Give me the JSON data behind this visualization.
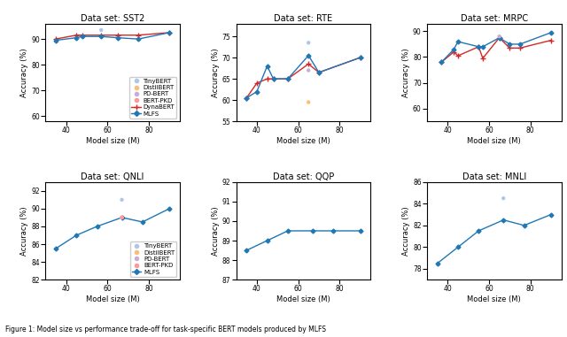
{
  "sst2": {
    "title": "Data set: SST2",
    "dynabert": {
      "x": [
        35,
        45,
        48,
        57,
        65,
        75,
        90
      ],
      "y": [
        90.0,
        91.5,
        91.5,
        91.5,
        91.5,
        91.5,
        92.5
      ]
    },
    "mlfs": {
      "x": [
        35,
        45,
        48,
        57,
        65,
        75,
        90
      ],
      "y": [
        89.5,
        90.5,
        91.0,
        91.0,
        90.5,
        90.0,
        92.5
      ]
    },
    "tinybert": {
      "x": [
        57
      ],
      "y": [
        93.5
      ]
    },
    "distilbert": {
      "x": [],
      "y": []
    },
    "pdbert": {
      "x": [],
      "y": []
    },
    "bertpkd": {
      "x": [],
      "y": []
    }
  },
  "rte": {
    "title": "Data set: RTE",
    "dynabert": {
      "x": [
        35,
        40,
        45,
        48,
        55,
        65,
        70,
        90
      ],
      "y": [
        60.5,
        64.0,
        65.0,
        65.0,
        65.0,
        68.5,
        66.5,
        70.0
      ]
    },
    "mlfs": {
      "x": [
        35,
        40,
        45,
        48,
        55,
        65,
        70,
        90
      ],
      "y": [
        60.5,
        62.0,
        68.0,
        65.0,
        65.0,
        70.5,
        66.5,
        70.0
      ]
    },
    "tinybert": {
      "x": [
        65
      ],
      "y": [
        73.5
      ]
    },
    "distilbert": {
      "x": [
        65
      ],
      "y": [
        59.5
      ]
    },
    "pdbert": {
      "x": [
        65
      ],
      "y": [
        67.0
      ]
    },
    "bertpkd": {
      "x": [],
      "y": []
    }
  },
  "mrpc": {
    "title": "Data set: MRPC",
    "dynabert": {
      "x": [
        37,
        43,
        45,
        55,
        57,
        65,
        70,
        75,
        90
      ],
      "y": [
        78.0,
        82.0,
        80.5,
        84.0,
        79.5,
        87.5,
        83.5,
        83.5,
        86.5
      ]
    },
    "mlfs": {
      "x": [
        37,
        43,
        45,
        55,
        57,
        65,
        70,
        75,
        90
      ],
      "y": [
        78.0,
        83.0,
        86.0,
        84.0,
        84.0,
        87.5,
        85.0,
        85.0,
        89.5
      ]
    },
    "tinybert": {
      "x": [],
      "y": []
    },
    "distilbert": {
      "x": [],
      "y": []
    },
    "pdbert": {
      "x": [
        65
      ],
      "y": [
        88.0
      ]
    },
    "bertpkd": {
      "x": [],
      "y": []
    }
  },
  "qnli": {
    "title": "Data set: QNLI",
    "dynabert": {
      "x": [],
      "y": []
    },
    "mlfs": {
      "x": [
        35,
        45,
        55,
        67,
        77,
        90
      ],
      "y": [
        85.5,
        87.0,
        88.0,
        89.0,
        88.5,
        90.0
      ]
    },
    "tinybert": {
      "x": [
        67
      ],
      "y": [
        91.0
      ]
    },
    "distilbert": {
      "x": [
        67
      ],
      "y": [
        89.0
      ]
    },
    "pdbert": {
      "x": [
        67
      ],
      "y": [
        89.0
      ]
    },
    "bertpkd": {
      "x": [
        67
      ],
      "y": [
        89.0
      ]
    }
  },
  "qqp": {
    "title": "Data set: QQP",
    "dynabert": {
      "x": [],
      "y": []
    },
    "mlfs": {
      "x": [
        35,
        45,
        55,
        67,
        77,
        90
      ],
      "y": [
        88.5,
        89.0,
        89.5,
        89.5,
        89.5,
        89.5
      ]
    },
    "tinybert": {
      "x": [],
      "y": []
    },
    "distilbert": {
      "x": [],
      "y": []
    },
    "pdbert": {
      "x": [],
      "y": []
    },
    "bertpkd": {
      "x": [],
      "y": []
    }
  },
  "mnli": {
    "title": "Data set: MNLI",
    "dynabert": {
      "x": [],
      "y": []
    },
    "mlfs": {
      "x": [
        35,
        45,
        55,
        67,
        77,
        90
      ],
      "y": [
        78.5,
        80.0,
        81.5,
        82.5,
        82.0,
        83.0
      ]
    },
    "tinybert": {
      "x": [
        67
      ],
      "y": [
        84.5
      ]
    },
    "distilbert": {
      "x": [],
      "y": []
    },
    "pdbert": {
      "x": [],
      "y": []
    },
    "bertpkd": {
      "x": [],
      "y": []
    }
  },
  "colors": {
    "dynabert": "#d62728",
    "mlfs": "#1f77b4",
    "tinybert": "#aec7e8",
    "distilbert": "#ffbb78",
    "pdbert": "#c5b0d5",
    "bertpkd": "#ff9896"
  },
  "ylims": {
    "sst2": [
      58,
      96
    ],
    "rte": [
      55,
      78
    ],
    "mrpc": [
      55,
      93
    ],
    "qnli": [
      82,
      93
    ],
    "qqp": [
      87,
      92
    ],
    "mnli": [
      77,
      86
    ]
  },
  "xlim": [
    30,
    95
  ],
  "caption": "Figure 1: Model size vs performance trade-off for task-specific BERT models produced by MLFS"
}
